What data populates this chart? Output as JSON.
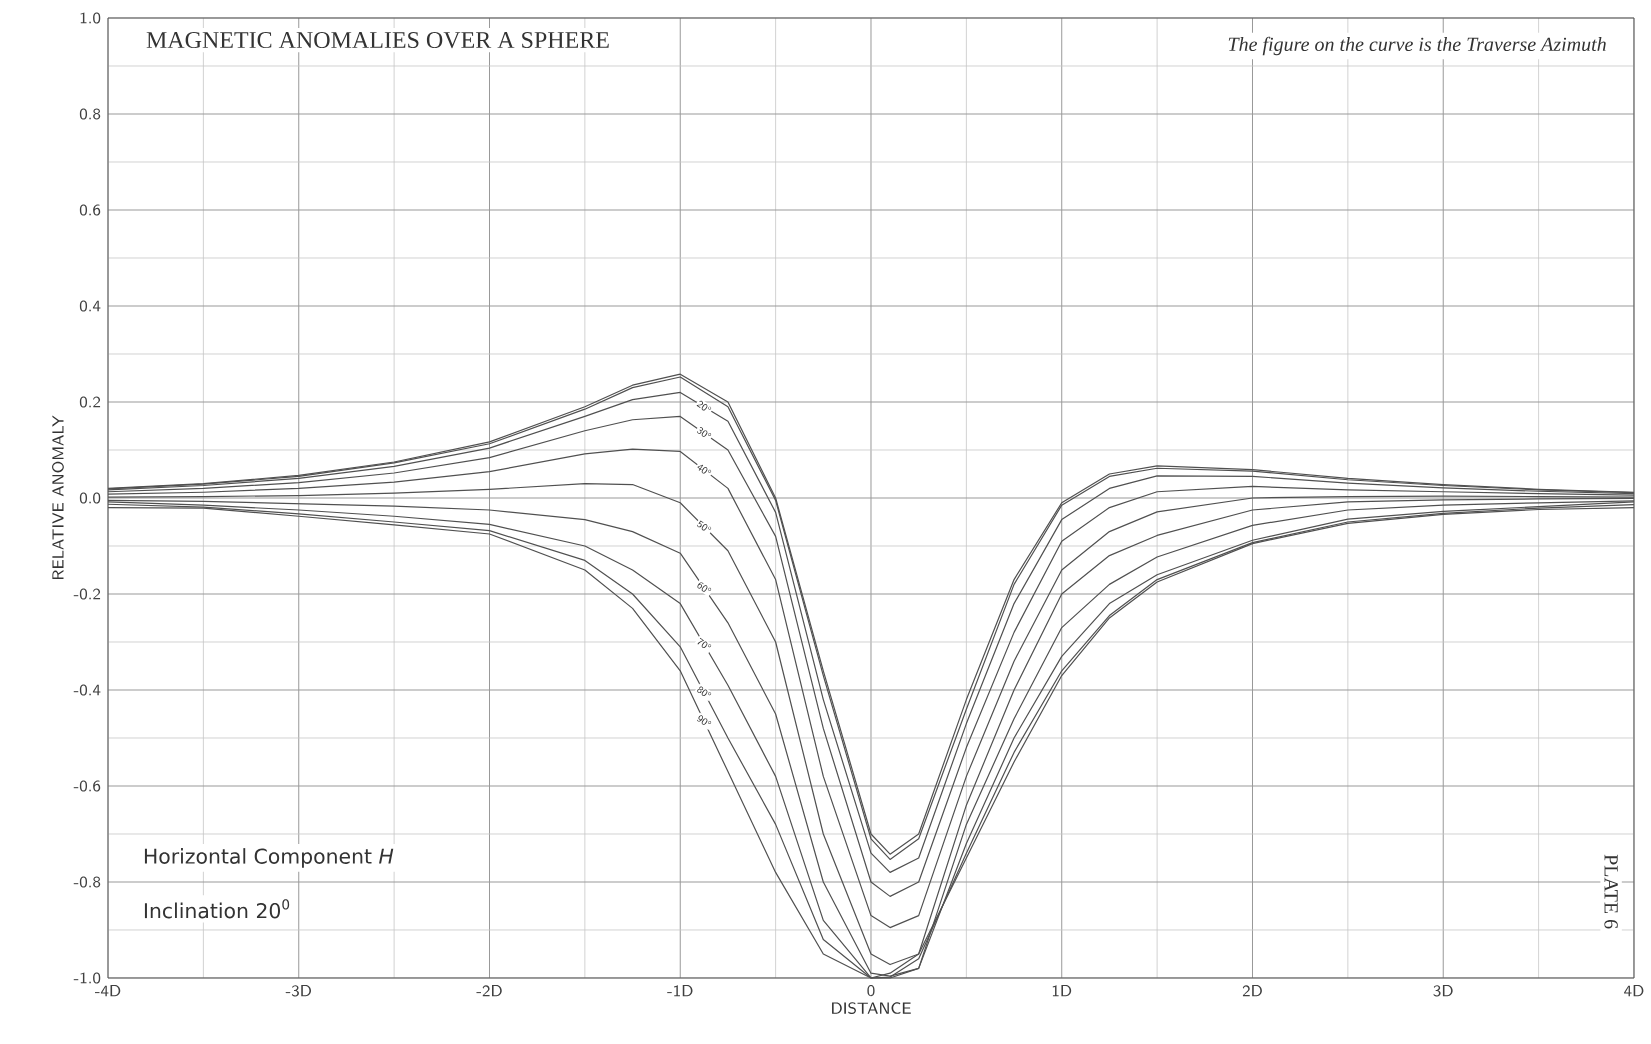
{
  "chart_data": {
    "type": "line",
    "title": "MAGNETIC ANOMALIES OVER A SPHERE",
    "xlabel": "DISTANCE",
    "ylabel": "RELATIVE     ANOMALY",
    "annotations": [
      "The figure on the curve is the Traverse Azimuth",
      "Horizontal Component *H*",
      "Inclination 20$^{0}$",
      "PLATE 6"
    ],
    "x": [
      -4,
      -3.5,
      -3,
      -2.5,
      -2,
      -1.5,
      -1.25,
      -1,
      -0.75,
      -0.5,
      -0.25,
      0,
      0.1,
      0.25,
      0.5,
      0.75,
      1,
      1.25,
      1.5,
      2,
      2.5,
      3,
      3.5,
      4
    ],
    "series": [
      {
        "color": "#505050",
        "values": [
          0.02,
          0.03,
          0.047,
          0.075,
          0.117,
          0.19,
          0.235,
          0.258,
          0.2,
          0.0,
          -0.36,
          -0.7,
          -0.742,
          -0.7,
          -0.42,
          -0.17,
          -0.01,
          0.05,
          0.067,
          0.059,
          0.041,
          0.028,
          0.018,
          0.012
        ]
      },
      {
        "color": "#505050",
        "values": [
          0.019,
          0.029,
          0.045,
          0.073,
          0.113,
          0.185,
          0.23,
          0.252,
          0.19,
          -0.005,
          -0.37,
          -0.71,
          -0.753,
          -0.71,
          -0.44,
          -0.18,
          -0.015,
          0.045,
          0.062,
          0.056,
          0.038,
          0.026,
          0.017,
          0.011
        ]
      },
      {
        "name": "20°",
        "color": "#505050",
        "values": [
          0.017,
          0.026,
          0.041,
          0.066,
          0.104,
          0.17,
          0.205,
          0.22,
          0.16,
          -0.03,
          -0.42,
          -0.74,
          -0.78,
          -0.75,
          -0.47,
          -0.22,
          -0.045,
          0.02,
          0.046,
          0.045,
          0.031,
          0.021,
          0.014,
          0.009
        ]
      },
      {
        "name": "30°",
        "color": "#505050",
        "values": [
          0.013,
          0.02,
          0.032,
          0.052,
          0.084,
          0.14,
          0.163,
          0.17,
          0.1,
          -0.08,
          -0.48,
          -0.8,
          -0.83,
          -0.8,
          -0.52,
          -0.28,
          -0.09,
          -0.02,
          0.013,
          0.024,
          0.017,
          0.013,
          0.009,
          0.006
        ]
      },
      {
        "name": "40°",
        "color": "#505050",
        "values": [
          0.008,
          0.012,
          0.02,
          0.033,
          0.055,
          0.092,
          0.102,
          0.097,
          0.02,
          -0.17,
          -0.58,
          -0.87,
          -0.895,
          -0.87,
          -0.58,
          -0.34,
          -0.15,
          -0.07,
          -0.029,
          0.0,
          0.003,
          0.004,
          0.003,
          0.002
        ]
      },
      {
        "name": "50°",
        "color": "#505050",
        "values": [
          0.002,
          0.003,
          0.005,
          0.01,
          0.018,
          0.03,
          0.028,
          -0.01,
          -0.11,
          -0.3,
          -0.7,
          -0.95,
          -0.972,
          -0.95,
          -0.64,
          -0.4,
          -0.2,
          -0.12,
          -0.078,
          -0.025,
          -0.008,
          -0.004,
          -0.002,
          -0.001
        ]
      },
      {
        "name": "60°",
        "color": "#505050",
        "values": [
          -0.005,
          -0.007,
          -0.012,
          -0.017,
          -0.025,
          -0.045,
          -0.07,
          -0.115,
          -0.26,
          -0.45,
          -0.8,
          -0.99,
          -0.996,
          -0.98,
          -0.68,
          -0.46,
          -0.27,
          -0.18,
          -0.123,
          -0.057,
          -0.025,
          -0.015,
          -0.01,
          -0.006
        ]
      },
      {
        "name": "70°",
        "color": "#505050",
        "values": [
          -0.008,
          -0.015,
          -0.025,
          -0.038,
          -0.055,
          -0.1,
          -0.15,
          -0.22,
          -0.39,
          -0.58,
          -0.88,
          -1.0,
          -1.0,
          -0.98,
          -0.72,
          -0.5,
          -0.33,
          -0.22,
          -0.16,
          -0.088,
          -0.044,
          -0.028,
          -0.018,
          -0.008
        ]
      },
      {
        "name": "80°",
        "color": "#505050",
        "values": [
          -0.013,
          -0.019,
          -0.033,
          -0.05,
          -0.068,
          -0.13,
          -0.2,
          -0.31,
          -0.5,
          -0.68,
          -0.92,
          -1.0,
          -0.998,
          -0.96,
          -0.74,
          -0.53,
          -0.36,
          -0.245,
          -0.17,
          -0.093,
          -0.05,
          -0.032,
          -0.021,
          -0.014
        ]
      },
      {
        "name": "90°",
        "color": "#505050",
        "values": [
          -0.02,
          -0.021,
          -0.038,
          -0.056,
          -0.075,
          -0.15,
          -0.23,
          -0.36,
          -0.57,
          -0.78,
          -0.95,
          -1.0,
          -0.99,
          -0.95,
          -0.75,
          -0.55,
          -0.37,
          -0.25,
          -0.175,
          -0.095,
          -0.053,
          -0.034,
          -0.024,
          -0.02
        ]
      }
    ],
    "xlim": [
      -4,
      4
    ],
    "xticks": [
      {
        "value": -4,
        "label": "-4D"
      },
      {
        "value": -3,
        "label": "-3D"
      },
      {
        "value": -2,
        "label": "-2D"
      },
      {
        "value": -1,
        "label": "-1D"
      },
      {
        "value": 0,
        "label": "0"
      },
      {
        "value": 1,
        "label": "1D"
      },
      {
        "value": 2,
        "label": "2D"
      },
      {
        "value": 3,
        "label": "3D"
      },
      {
        "value": 4,
        "label": "4D"
      }
    ],
    "ylim": [
      -1,
      1
    ],
    "yticks": [
      {
        "value": -1,
        "label": "-1.0"
      },
      {
        "value": -0.8,
        "label": "-0.8"
      },
      {
        "value": -0.6,
        "label": "-0.6"
      },
      {
        "value": -0.4,
        "label": "-0.4"
      },
      {
        "value": -0.2,
        "label": "-0.2"
      },
      {
        "value": 0,
        "label": "0.0"
      },
      {
        "value": 0.2,
        "label": "0.2"
      },
      {
        "value": 0.4,
        "label": "0.4"
      },
      {
        "value": 0.6,
        "label": "0.6"
      },
      {
        "value": 0.8,
        "label": "0.8"
      },
      {
        "value": 1,
        "label": "1.0"
      }
    ],
    "grid": true,
    "legend": false,
    "marker": "none",
    "line_style": "solid"
  }
}
